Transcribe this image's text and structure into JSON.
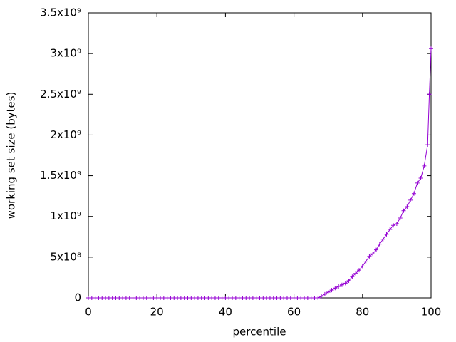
{
  "chart_data": {
    "type": "line",
    "xlabel": "percentile",
    "ylabel": "working set size (bytes)",
    "color": "#9400d3",
    "x": [
      0,
      1,
      2,
      3,
      4,
      5,
      6,
      7,
      8,
      9,
      10,
      11,
      12,
      13,
      14,
      15,
      16,
      17,
      18,
      19,
      20,
      21,
      22,
      23,
      24,
      25,
      26,
      27,
      28,
      29,
      30,
      31,
      32,
      33,
      34,
      35,
      36,
      37,
      38,
      39,
      40,
      41,
      42,
      43,
      44,
      45,
      46,
      47,
      48,
      49,
      50,
      51,
      52,
      53,
      54,
      55,
      56,
      57,
      58,
      59,
      60,
      61,
      62,
      63,
      64,
      65,
      66,
      67,
      68,
      69,
      70,
      71,
      72,
      73,
      74,
      75,
      76,
      77,
      78,
      79,
      80,
      81,
      82,
      83,
      84,
      85,
      86,
      87,
      88,
      89,
      90,
      91,
      92,
      93,
      94,
      95,
      96,
      97,
      98,
      99,
      99.5,
      100
    ],
    "values": [
      0,
      0,
      0,
      0,
      0,
      0,
      0,
      0,
      0,
      0,
      0,
      0,
      0,
      0,
      0,
      0,
      0,
      0,
      0,
      0,
      0,
      0,
      0,
      0,
      0,
      0,
      0,
      0,
      0,
      0,
      0,
      0,
      0,
      0,
      0,
      0,
      0,
      0,
      0,
      0,
      0,
      0,
      0,
      0,
      0,
      0,
      0,
      0,
      0,
      0,
      0,
      0,
      0,
      0,
      0,
      0,
      0,
      0,
      0,
      0,
      0,
      0,
      0,
      0,
      0,
      0,
      0,
      0,
      20000000,
      45000000,
      70000000,
      95000000,
      120000000,
      140000000,
      160000000,
      180000000,
      210000000,
      260000000,
      300000000,
      340000000,
      390000000,
      450000000,
      510000000,
      540000000,
      590000000,
      660000000,
      720000000,
      780000000,
      840000000,
      890000000,
      910000000,
      980000000,
      1070000000,
      1120000000,
      1200000000,
      1280000000,
      1410000000,
      1470000000,
      1620000000,
      1880000000,
      2500000000,
      3060000000
    ],
    "xlim": [
      0,
      100
    ],
    "xticks": [
      0,
      20,
      40,
      60,
      80,
      100
    ],
    "ylim": [
      0,
      3500000000
    ],
    "yticks": [
      0,
      {
        "value": 500000000,
        "label": "5x10⁸"
      },
      {
        "value": 1000000000,
        "label": "1x10⁹"
      },
      {
        "value": 1500000000,
        "label": "1.5x10⁹"
      },
      {
        "value": 2000000000,
        "label": "2x10⁹"
      },
      {
        "value": 2500000000,
        "label": "2.5x10⁹"
      },
      {
        "value": 3000000000,
        "label": "3x10⁹"
      },
      {
        "value": 3500000000,
        "label": "3.5x10⁹"
      }
    ]
  }
}
